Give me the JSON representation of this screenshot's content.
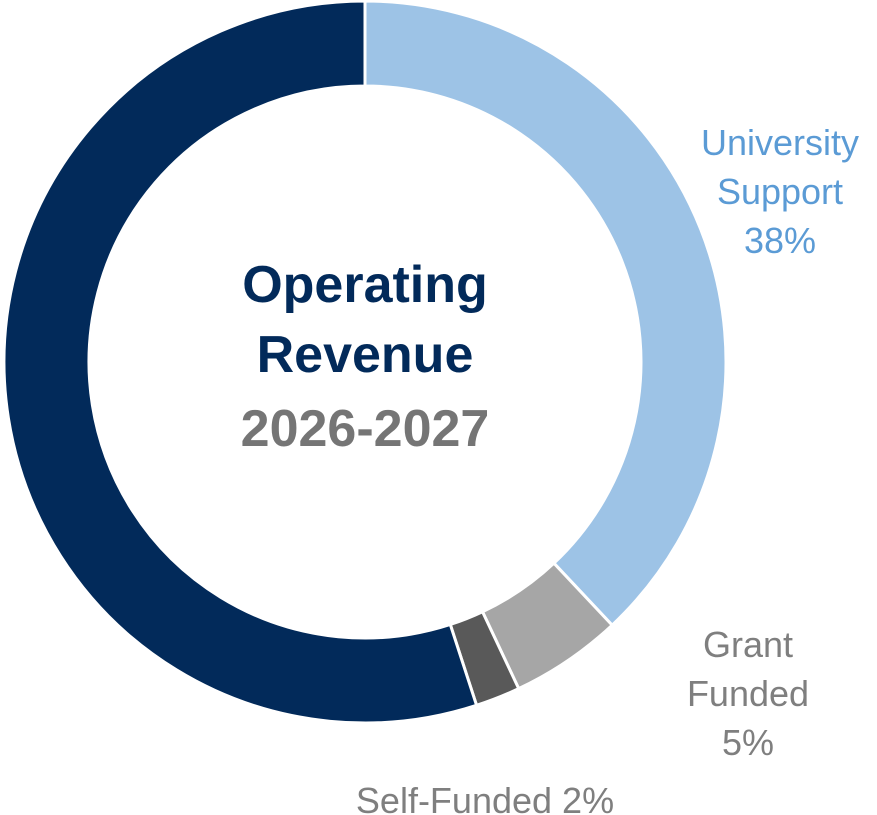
{
  "chart_data": {
    "type": "donut",
    "title": "Operating Revenue",
    "subtitle": "2026-2027",
    "categories": [
      "University Support",
      "Grant Funded",
      "Self-Funded",
      null
    ],
    "values": [
      38,
      5,
      2,
      55
    ],
    "value_labels": [
      "38%",
      "5%",
      "2%",
      null
    ],
    "colors": [
      "#9dc3e6",
      "#a6a6a6",
      "#595959",
      "#022a5a"
    ],
    "label_colors": [
      "#5b9bd5",
      "#7f7f7f",
      "#7f7f7f",
      null
    ]
  }
}
